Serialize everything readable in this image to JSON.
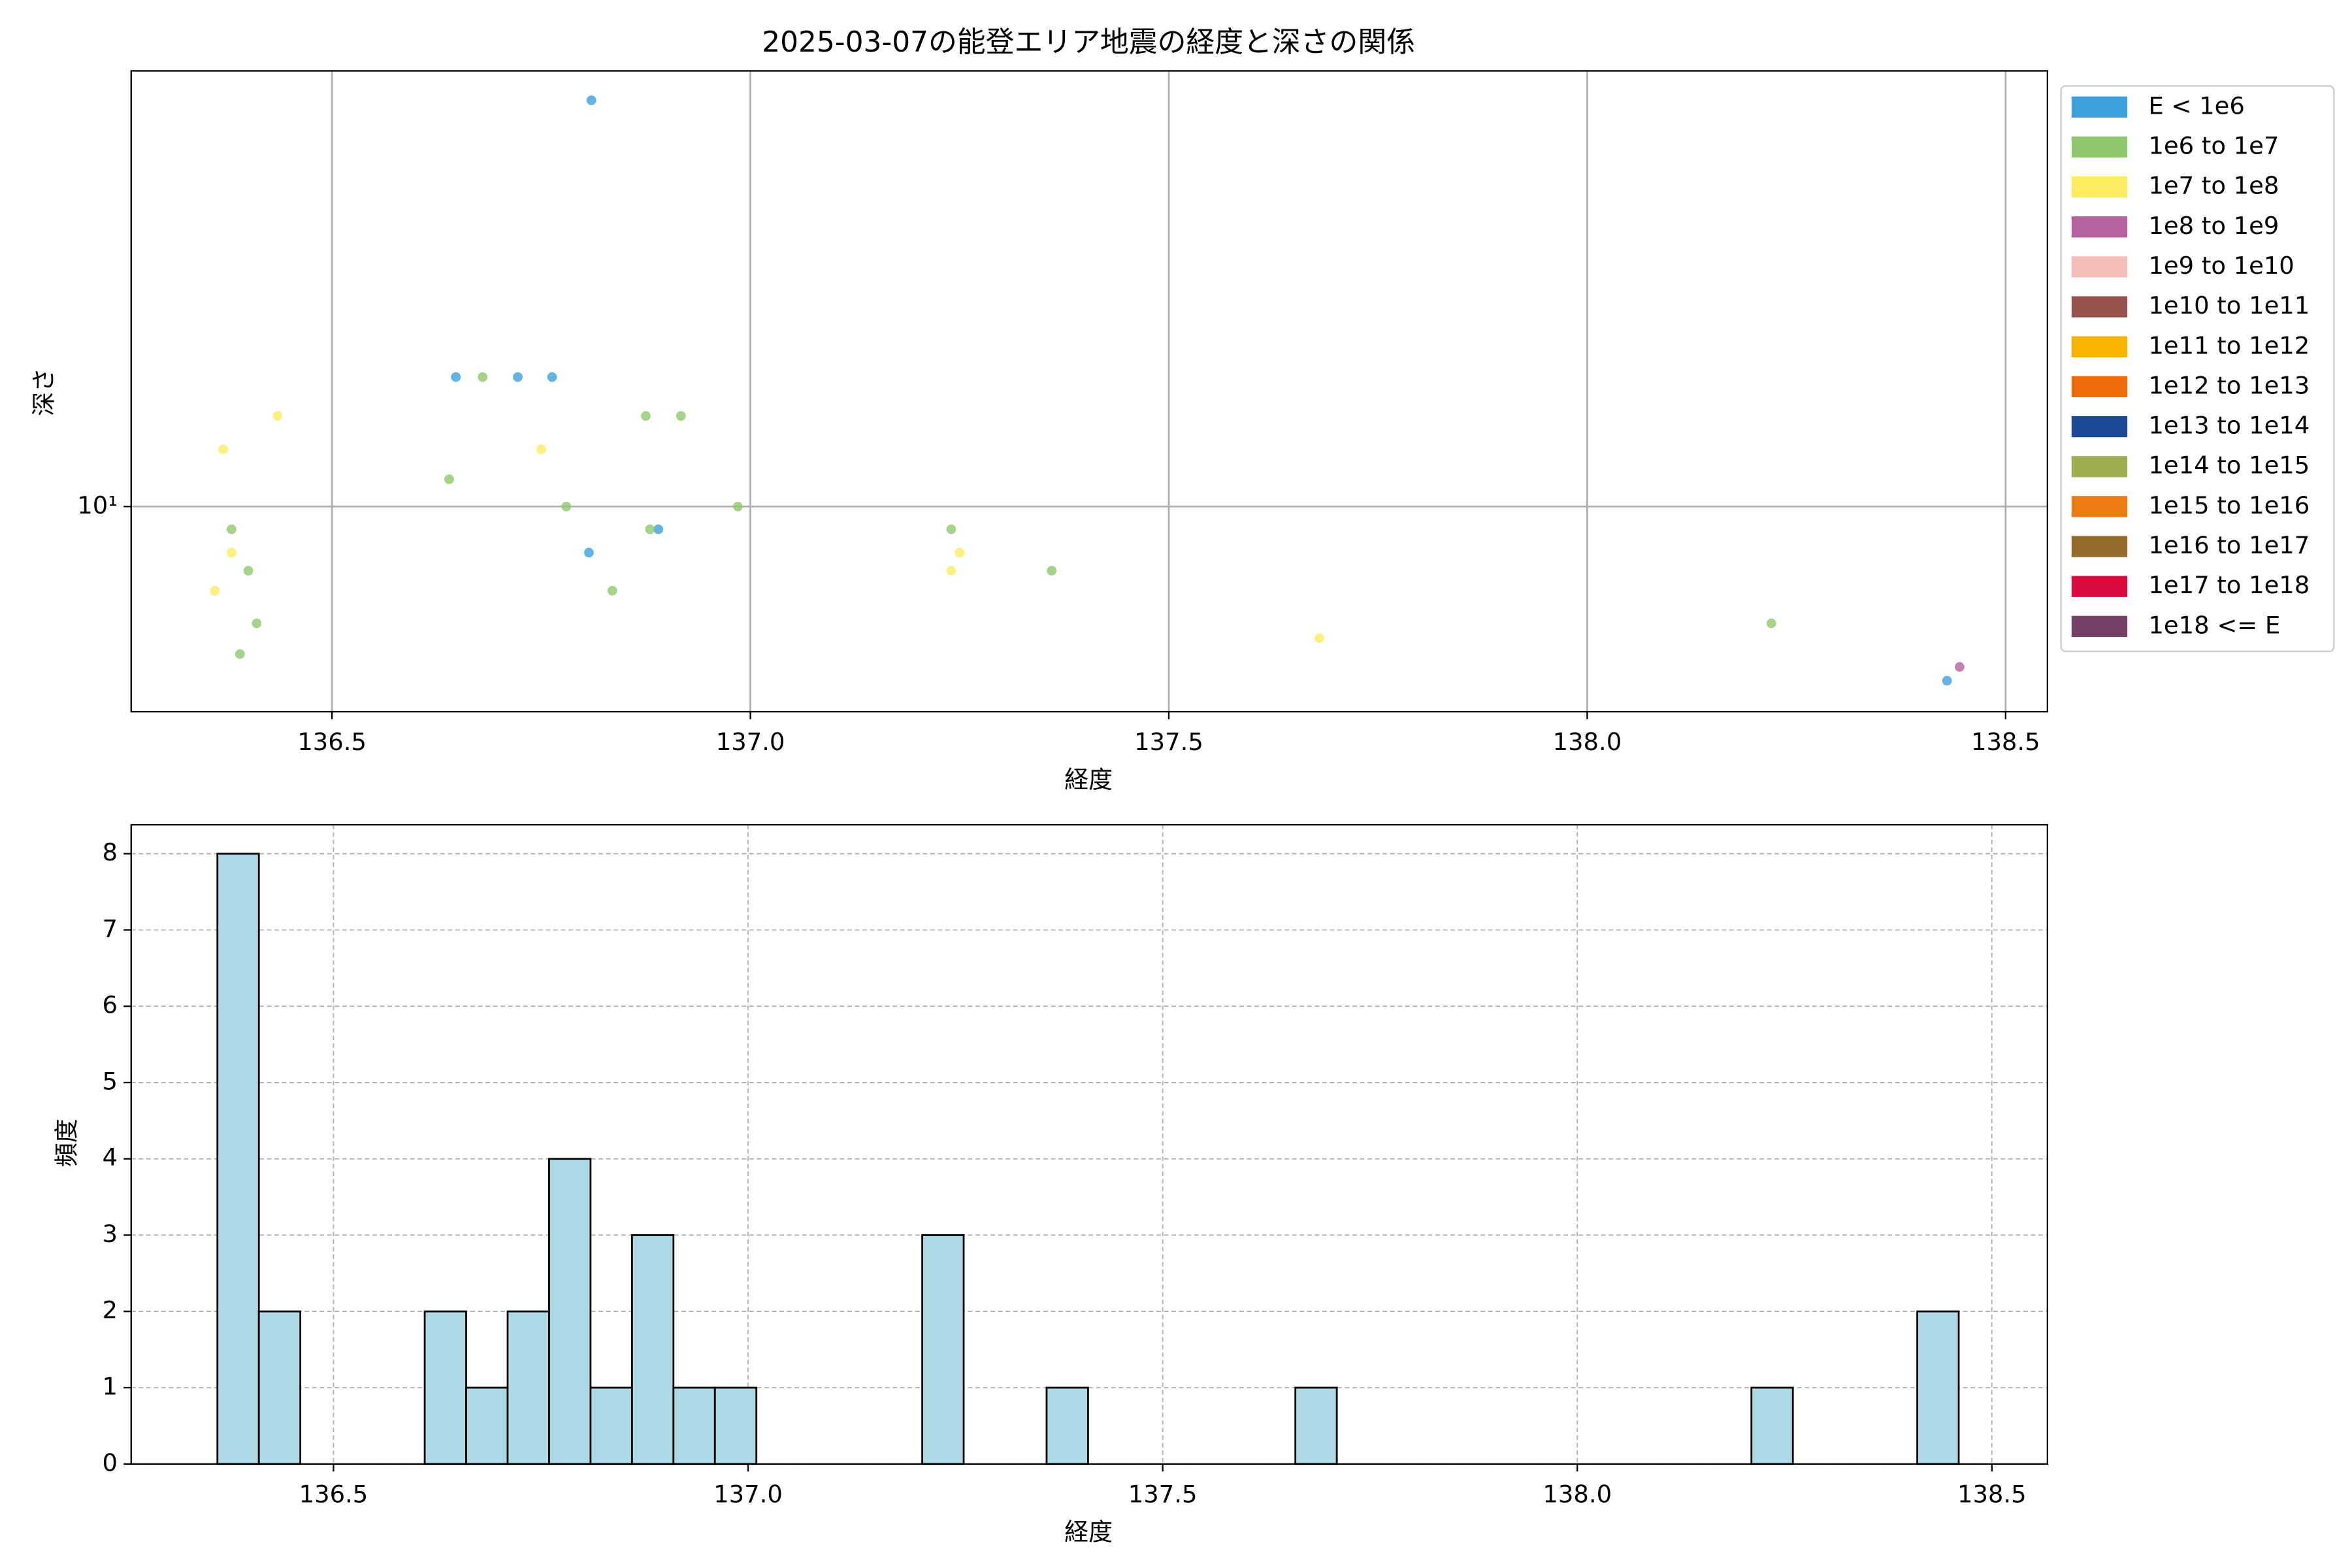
{
  "chart_data": [
    {
      "type": "scatter",
      "title": "2025-03-07の能登エリア地震の経度と深さの関係",
      "x_label": "経度",
      "y_label": "深さ",
      "xlim": [
        136.26,
        138.55
      ],
      "ylim": [
        3.5,
        93
      ],
      "yscale": "log",
      "grid": true,
      "legend": "outside right",
      "xticks": [
        136.5,
        {
          "value": 137.0,
          "label": "137.0"
        },
        137.5,
        {
          "value": 138.0,
          "label": "138.0"
        },
        138.5
      ],
      "yticks": [
        {
          "value": 10,
          "label": "10¹"
        }
      ],
      "series": [
        {
          "name": "E < 1e6",
          "color": "#3ca0dc",
          "x": [
            136.81,
            136.648,
            136.722,
            136.763,
            136.807,
            136.89,
            138.43
          ],
          "values": [
            80,
            19.4,
            19.4,
            19.4,
            7.9,
            8.9,
            4.1
          ]
        },
        {
          "name": "1e6 to 1e7",
          "color": "#8ec86c",
          "x": [
            136.68,
            136.64,
            136.78,
            136.38,
            136.4,
            136.41,
            136.39,
            136.875,
            136.917,
            136.88,
            136.985,
            136.835,
            137.24,
            137.36,
            138.22
          ],
          "values": [
            19.4,
            11.5,
            10,
            8.9,
            7.2,
            5.5,
            4.7,
            15.9,
            15.9,
            8.9,
            10,
            6.5,
            8.9,
            7.2,
            5.5
          ]
        },
        {
          "name": "1e7 to 1e8",
          "color": "#fdeb60",
          "x": [
            136.37,
            136.435,
            136.38,
            136.36,
            136.75,
            137.25,
            137.24,
            137.68
          ],
          "values": [
            13.4,
            15.9,
            7.9,
            6.5,
            13.4,
            7.9,
            7.2,
            5.1
          ]
        },
        {
          "name": "1e8 to 1e9",
          "color": "#b5619f",
          "x": [
            138.445
          ],
          "values": [
            4.4
          ]
        },
        {
          "name": "1e9 to 1e10",
          "color": "#f5bfb9",
          "x": [],
          "values": []
        },
        {
          "name": "1e10 to 1e11",
          "color": "#98524e",
          "x": [],
          "values": []
        },
        {
          "name": "1e11 to 1e12",
          "color": "#f8b400",
          "x": [],
          "values": []
        },
        {
          "name": "1e12 to 1e13",
          "color": "#ef6a0b",
          "x": [],
          "values": []
        },
        {
          "name": "1e13 to 1e14",
          "color": "#1c4a96",
          "x": [],
          "values": []
        },
        {
          "name": "1e14 to 1e15",
          "color": "#9ead4f",
          "x": [],
          "values": []
        },
        {
          "name": "1e15 to 1e16",
          "color": "#ee7b11",
          "x": [],
          "values": []
        },
        {
          "name": "1e16 to 1e17",
          "color": "#956b2c",
          "x": [],
          "values": []
        },
        {
          "name": "1e17 to 1e18",
          "color": "#db0b3f",
          "x": [],
          "values": []
        },
        {
          "name": "1e18 <= E",
          "color": "#774067",
          "x": [],
          "values": []
        }
      ]
    },
    {
      "type": "histogram",
      "x_label": "経度",
      "y_label": "頻度",
      "color": "#add8e6",
      "edge_color": "#000000",
      "grid": true,
      "xlim": [
        136.256,
        138.567
      ],
      "ylim": [
        0,
        8.38
      ],
      "xticks": [
        136.5,
        {
          "value": 137.0,
          "label": "137.0"
        },
        137.5,
        {
          "value": 138.0,
          "label": "138.0"
        },
        138.5
      ],
      "yticks": [
        0,
        1,
        2,
        3,
        4,
        5,
        6,
        7,
        8
      ],
      "bins": [
        136.36,
        136.41,
        136.46,
        136.51,
        136.56,
        136.61,
        136.66,
        136.71,
        136.76,
        136.81,
        136.86,
        136.91,
        136.96,
        137.01,
        137.06,
        137.11,
        137.16,
        137.21,
        137.26,
        137.31,
        137.36,
        137.41,
        137.46,
        137.51,
        137.56,
        137.61,
        137.66,
        137.71,
        137.76,
        137.81,
        137.86,
        137.91,
        137.96,
        138.01,
        138.06,
        138.11,
        138.16,
        138.21,
        138.26,
        138.31,
        138.36,
        138.41,
        138.46
      ],
      "values": [
        8,
        2,
        0,
        0,
        0,
        2,
        1,
        2,
        4,
        1,
        3,
        1,
        1,
        0,
        0,
        0,
        0,
        3,
        0,
        0,
        1,
        0,
        0,
        0,
        0,
        0,
        1,
        0,
        0,
        0,
        0,
        0,
        0,
        0,
        0,
        0,
        0,
        1,
        0,
        0,
        0,
        2
      ]
    }
  ]
}
